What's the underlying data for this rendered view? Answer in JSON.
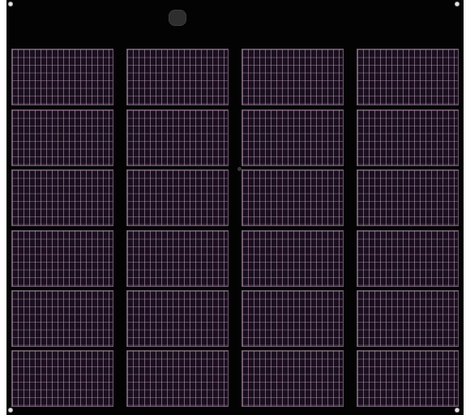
{
  "panel": {
    "columns": 4,
    "rows": 6,
    "colors": {
      "frame": "#030303",
      "cell": "#1a0f1e",
      "grid": "#b9a0b9",
      "grommet": "#e8e8e8",
      "junction_box": "#2e2e2e"
    }
  }
}
